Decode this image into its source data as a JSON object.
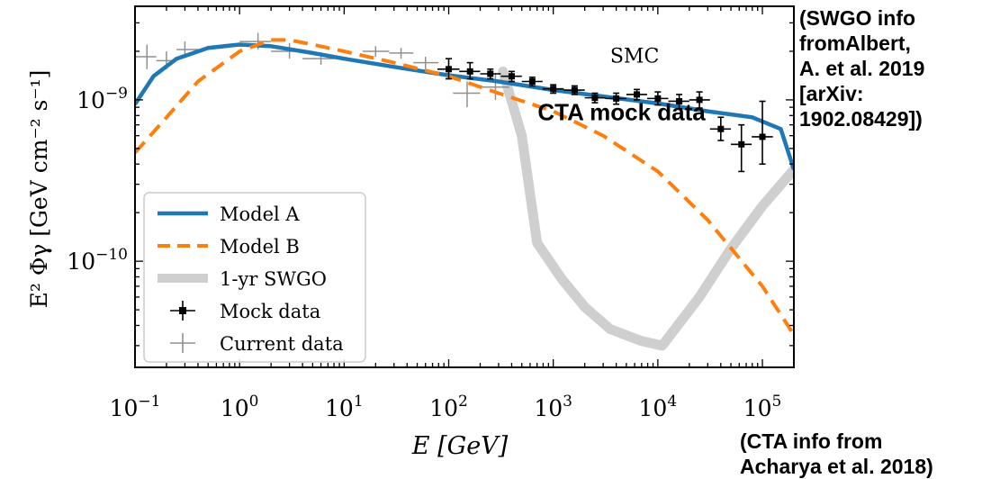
{
  "annotations": {
    "swgo_info": [
      "(SWGO info",
      "fromAlbert,",
      "A. et al. 2019",
      "[arXiv:",
      "1902.08429])"
    ],
    "cta_info": [
      "(CTA info from",
      "Acharya et al. 2018)"
    ]
  },
  "chart_data": {
    "type": "line",
    "title": "",
    "xlabel": "E [GeV]",
    "ylabel": "E² Φγ [GeV cm⁻² s⁻¹]",
    "x_scale": "log",
    "y_scale": "log",
    "xlim": [
      0.1,
      200000
    ],
    "ylim": [
      2.2e-11,
      3.8e-09
    ],
    "x_ticks": [
      {
        "value": 0.1,
        "base": "10",
        "exp": "−1"
      },
      {
        "value": 1,
        "base": "10",
        "exp": "0"
      },
      {
        "value": 10,
        "base": "10",
        "exp": "1"
      },
      {
        "value": 100,
        "base": "10",
        "exp": "2"
      },
      {
        "value": 1000,
        "base": "10",
        "exp": "3"
      },
      {
        "value": 10000,
        "base": "10",
        "exp": "4"
      },
      {
        "value": 100000,
        "base": "10",
        "exp": "5"
      }
    ],
    "y_ticks": [
      {
        "value": 1e-10,
        "base": "10",
        "exp": "−10"
      },
      {
        "value": 1e-09,
        "base": "10",
        "exp": "−9"
      }
    ],
    "grid": false,
    "legend_position": "lower-left",
    "annotations": [
      {
        "text": "SMC",
        "x": 6000,
        "y": 1.7e-09,
        "style": "serif"
      },
      {
        "text": "CTA mock data",
        "x": 4500,
        "y": 7.5e-10,
        "style": "bold-sans"
      }
    ],
    "series": [
      {
        "name": "Model A",
        "kind": "line",
        "color": "#1f77b4",
        "style": "solid",
        "points": [
          [
            0.1,
            9.4e-10
          ],
          [
            0.15,
            1.4e-09
          ],
          [
            0.25,
            1.8e-09
          ],
          [
            0.5,
            2.1e-09
          ],
          [
            1,
            2.2e-09
          ],
          [
            2,
            2.15e-09
          ],
          [
            5,
            1.95e-09
          ],
          [
            10,
            1.8e-09
          ],
          [
            30,
            1.6e-09
          ],
          [
            100,
            1.42e-09
          ],
          [
            300,
            1.3e-09
          ],
          [
            1000,
            1.15e-09
          ],
          [
            3000,
            1.05e-09
          ],
          [
            10000,
            9.5e-10
          ],
          [
            30000,
            8.5e-10
          ],
          [
            80000,
            7.8e-10
          ],
          [
            150000,
            6.6e-10
          ],
          [
            200000,
            3.7e-10
          ]
        ]
      },
      {
        "name": "Model B",
        "kind": "line",
        "color": "#ff7f0e",
        "style": "dashed",
        "points": [
          [
            0.1,
            4.7e-10
          ],
          [
            0.2,
            7.8e-10
          ],
          [
            0.4,
            1.3e-09
          ],
          [
            1,
            2e-09
          ],
          [
            2,
            2.35e-09
          ],
          [
            3,
            2.35e-09
          ],
          [
            5,
            2.2e-09
          ],
          [
            10,
            2e-09
          ],
          [
            30,
            1.7e-09
          ],
          [
            100,
            1.4e-09
          ],
          [
            300,
            1.1e-09
          ],
          [
            1000,
            8.5e-10
          ],
          [
            3000,
            6e-10
          ],
          [
            10000,
            3.6e-10
          ],
          [
            30000,
            1.8e-10
          ],
          [
            100000,
            7e-11
          ],
          [
            200000,
            3.5e-11
          ]
        ]
      },
      {
        "name": "1-yr SWGO",
        "kind": "band",
        "color": "#cfcfcf",
        "style": "solid",
        "points": [
          [
            330,
            1.5e-09
          ],
          [
            500,
            6e-10
          ],
          [
            700,
            1.3e-10
          ],
          [
            1200,
            7.8e-11
          ],
          [
            2000,
            5.2e-11
          ],
          [
            3500,
            3.8e-11
          ],
          [
            7000,
            3.2e-11
          ],
          [
            11000,
            3e-11
          ],
          [
            25000,
            6e-11
          ],
          [
            50000,
            1.2e-10
          ],
          [
            100000,
            2.2e-10
          ],
          [
            200000,
            3.7e-10
          ]
        ]
      },
      {
        "name": "Mock data",
        "kind": "errorbar",
        "color": "#000000",
        "marker": "square",
        "points": [
          {
            "x": 100,
            "y": 1.55e-09,
            "xerr": [
              78,
              127
            ],
            "yerr": [
              1.35e-09,
              1.8e-09
            ]
          },
          {
            "x": 160,
            "y": 1.5e-09,
            "xerr": [
              126,
              200
            ],
            "yerr": [
              1.35e-09,
              1.7e-09
            ]
          },
          {
            "x": 250,
            "y": 1.45e-09,
            "xerr": [
              200,
              315
            ],
            "yerr": [
              1.35e-09,
              1.55e-09
            ]
          },
          {
            "x": 400,
            "y": 1.4e-09,
            "xerr": [
              315,
              500
            ],
            "yerr": [
              1.3e-09,
              1.5e-09
            ]
          },
          {
            "x": 630,
            "y": 1.3e-09,
            "xerr": [
              500,
              790
            ],
            "yerr": [
              1.22e-09,
              1.38e-09
            ]
          },
          {
            "x": 1000,
            "y": 1.17e-09,
            "xerr": [
              790,
              1260
            ],
            "yerr": [
              1.1e-09,
              1.24e-09
            ]
          },
          {
            "x": 1600,
            "y": 1.15e-09,
            "xerr": [
              1260,
              2000
            ],
            "yerr": [
              1.08e-09,
              1.22e-09
            ]
          },
          {
            "x": 2500,
            "y": 1.03e-09,
            "xerr": [
              2000,
              3150
            ],
            "yerr": [
              9.6e-10,
              1.1e-09
            ]
          },
          {
            "x": 4000,
            "y": 1.02e-09,
            "xerr": [
              3150,
              5000
            ],
            "yerr": [
              9.4e-10,
              1.1e-09
            ]
          },
          {
            "x": 6300,
            "y": 1.08e-09,
            "xerr": [
              5000,
              7900
            ],
            "yerr": [
              1e-09,
              1.16e-09
            ]
          },
          {
            "x": 10000,
            "y": 1.02e-09,
            "xerr": [
              7900,
              12600
            ],
            "yerr": [
              9.3e-10,
              1.12e-09
            ]
          },
          {
            "x": 16000,
            "y": 9.8e-10,
            "xerr": [
              12600,
              20000
            ],
            "yerr": [
              8.8e-10,
              1.08e-09
            ]
          },
          {
            "x": 25000,
            "y": 1e-09,
            "xerr": [
              20000,
              31500
            ],
            "yerr": [
              8.9e-10,
              1.12e-09
            ]
          },
          {
            "x": 40000,
            "y": 6.6e-10,
            "xerr": [
              31500,
              50000
            ],
            "yerr": [
              5.6e-10,
              7.8e-10
            ]
          },
          {
            "x": 63000,
            "y": 5.3e-10,
            "xerr": [
              50000,
              79000
            ],
            "yerr": [
              3.6e-10,
              7e-10
            ]
          },
          {
            "x": 100000,
            "y": 5.9e-10,
            "xerr": [
              79000,
              126000
            ],
            "yerr": [
              4e-10,
              9.8e-10
            ]
          }
        ]
      },
      {
        "name": "Current data",
        "kind": "errorbar",
        "color": "#909090",
        "marker": "none",
        "points": [
          {
            "x": 0.13,
            "y": 1.85e-09,
            "xerr": [
              0.1,
              0.16
            ],
            "yerr": [
              1.55e-09,
              2.2e-09
            ]
          },
          {
            "x": 0.2,
            "y": 1.75e-09,
            "xerr": [
              0.16,
              0.25
            ],
            "yerr": [
              1.55e-09,
              2e-09
            ]
          },
          {
            "x": 0.3,
            "y": 2.05e-09,
            "xerr": [
              0.25,
              0.4
            ],
            "yerr": [
              1.85e-09,
              2.3e-09
            ]
          },
          {
            "x": 1.5,
            "y": 2.3e-09,
            "xerr": [
              1.0,
              2.0
            ],
            "yerr": [
              2.05e-09,
              2.6e-09
            ]
          },
          {
            "x": 3,
            "y": 2e-09,
            "xerr": [
              2.0,
              4.0
            ],
            "yerr": [
              1.8e-09,
              2.25e-09
            ]
          },
          {
            "x": 6,
            "y": 1.8e-09,
            "xerr": [
              4.0,
              8.0
            ],
            "yerr": [
              1.65e-09,
              1.95e-09
            ]
          },
          {
            "x": 20,
            "y": 2e-09,
            "xerr": [
              15,
              27
            ],
            "yerr": [
              1.85e-09,
              2.15e-09
            ]
          },
          {
            "x": 35,
            "y": 1.95e-09,
            "xerr": [
              27,
              46
            ],
            "yerr": [
              1.8e-09,
              2.1e-09
            ]
          },
          {
            "x": 60,
            "y": 1.7e-09,
            "xerr": [
              46,
              80
            ],
            "yerr": [
              1.55e-09,
              1.85e-09
            ]
          },
          {
            "x": 150,
            "y": 1.1e-09,
            "xerr": [
              110,
              200
            ],
            "yerr": [
              9e-10,
              1.3e-09
            ]
          },
          {
            "x": 280,
            "y": 1.2e-09,
            "xerr": [
              200,
              380
            ],
            "yerr": [
              1e-09,
              1.45e-09
            ]
          }
        ]
      }
    ]
  }
}
